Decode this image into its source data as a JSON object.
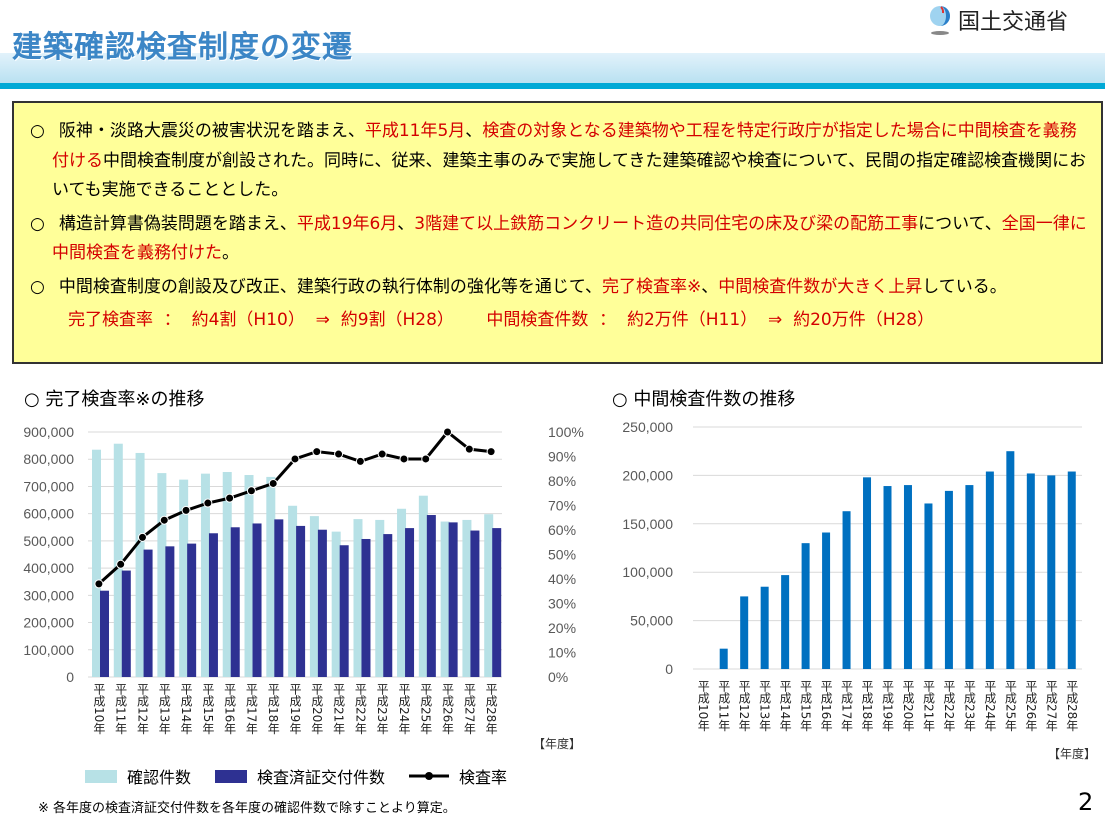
{
  "header": {
    "title": "建築確認検査制度の変遷",
    "logo_text": "国土交通省"
  },
  "summary_box": {
    "items": [
      {
        "segments": [
          {
            "t": "阪神・淡路大震災の被害状況を踏まえ、",
            "red": false
          },
          {
            "t": "平成11年5月",
            "red": true
          },
          {
            "t": "、",
            "red": false
          },
          {
            "t": "検査の対象となる建築物や工程を特定行政庁が指定した場合に中間検査を義務付ける",
            "red": true
          },
          {
            "t": "中間検査制度が創設された。同時に、従来、建築主事のみで実施してきた建築確認や検査について、民間の指定確認検査機関においても実施できることとした。",
            "red": false
          }
        ]
      },
      {
        "segments": [
          {
            "t": "構造計算書偽装問題を踏まえ、",
            "red": false
          },
          {
            "t": "平成19年6月",
            "red": true
          },
          {
            "t": "、",
            "red": false
          },
          {
            "t": "3階建て以上鉄筋コンクリート造の共同住宅の床及び梁の配筋工",
            "red": true
          },
          {
            "t": "事",
            "red": true
          },
          {
            "t": "について、",
            "red": false
          },
          {
            "t": "全国一律に中間検査を義務付けた",
            "red": true
          },
          {
            "t": "。",
            "red": false
          }
        ]
      },
      {
        "segments": [
          {
            "t": "中間検査制度の創設及び改正、建築行政の執行体制の強化等を通じて、",
            "red": false
          },
          {
            "t": "完了検査率※",
            "red": true
          },
          {
            "t": "、",
            "red": false
          },
          {
            "t": "中間検査件数が大きく上昇",
            "red": true
          },
          {
            "t": "している。",
            "red": false
          }
        ]
      }
    ],
    "bullet": "○",
    "summary_line": "完了検査率  ：  約4割（H10）  ⇒  約9割（H28）      中間検査件数  ：  約2万件（H11）  ⇒  約20万件（H28）"
  },
  "chart_data": [
    {
      "type": "bar+line",
      "title": "○  完了検査率※の推移",
      "categories": [
        "平成10年",
        "平成11年",
        "平成12年",
        "平成13年",
        "平成14年",
        "平成15年",
        "平成16年",
        "平成17年",
        "平成18年",
        "平成19年",
        "平成20年",
        "平成21年",
        "平成22年",
        "平成23年",
        "平成24年",
        "平成25年",
        "平成26年",
        "平成27年",
        "平成28年"
      ],
      "series": [
        {
          "name": "確認件数",
          "type": "bar",
          "axis": "left",
          "color": "#b7e1e6",
          "values": [
            835000,
            857000,
            823000,
            749000,
            725000,
            747000,
            753000,
            742000,
            735000,
            629000,
            591000,
            534000,
            580000,
            577000,
            618000,
            666000,
            571000,
            577000,
            598000
          ]
        },
        {
          "name": "検査済証交付件数",
          "type": "bar",
          "axis": "left",
          "color": "#2e3192",
          "values": [
            317000,
            391000,
            468000,
            480000,
            490000,
            528000,
            550000,
            564000,
            579000,
            555000,
            541000,
            484000,
            507000,
            525000,
            547000,
            595000,
            568000,
            538000,
            547000
          ]
        },
        {
          "name": "検査率",
          "type": "line",
          "axis": "right",
          "color": "#000000",
          "values": [
            38,
            46,
            57,
            64,
            68,
            71,
            73,
            76,
            79,
            89,
            92,
            91,
            88,
            91,
            89,
            89,
            100,
            93,
            92
          ]
        }
      ],
      "ylim": [
        0,
        900000
      ],
      "yticks": [
        "0",
        "100,000",
        "200,000",
        "300,000",
        "400,000",
        "500,000",
        "600,000",
        "700,000",
        "800,000",
        "900,000"
      ],
      "y2lim": [
        0,
        100
      ],
      "y2ticks": [
        "0%",
        "10%",
        "20%",
        "30%",
        "40%",
        "50%",
        "60%",
        "70%",
        "80%",
        "90%",
        "100%"
      ],
      "xlabel": "【年度】",
      "grid": true,
      "legend": "bottom"
    },
    {
      "type": "bar",
      "title": "○  中間検査件数の推移",
      "categories": [
        "平成10年",
        "平成11年",
        "平成12年",
        "平成13年",
        "平成14年",
        "平成15年",
        "平成16年",
        "平成17年",
        "平成18年",
        "平成19年",
        "平成20年",
        "平成21年",
        "平成22年",
        "平成23年",
        "平成24年",
        "平成25年",
        "平成26年",
        "平成27年",
        "平成28年"
      ],
      "values": [
        0,
        21000,
        75000,
        85000,
        97000,
        130000,
        141000,
        163000,
        198000,
        189000,
        190000,
        171000,
        184000,
        190000,
        204000,
        225000,
        202000,
        200000,
        204000
      ],
      "color": "#0070c0",
      "ylim": [
        0,
        250000
      ],
      "yticks": [
        "0",
        "50,000",
        "100,000",
        "150,000",
        "200,000",
        "250,000"
      ],
      "xlabel": "【年度】",
      "grid": true
    }
  ],
  "footer": {
    "note": "※  各年度の検査済証交付件数を各年度の確認件数で除すことより算定。",
    "page": "2"
  }
}
